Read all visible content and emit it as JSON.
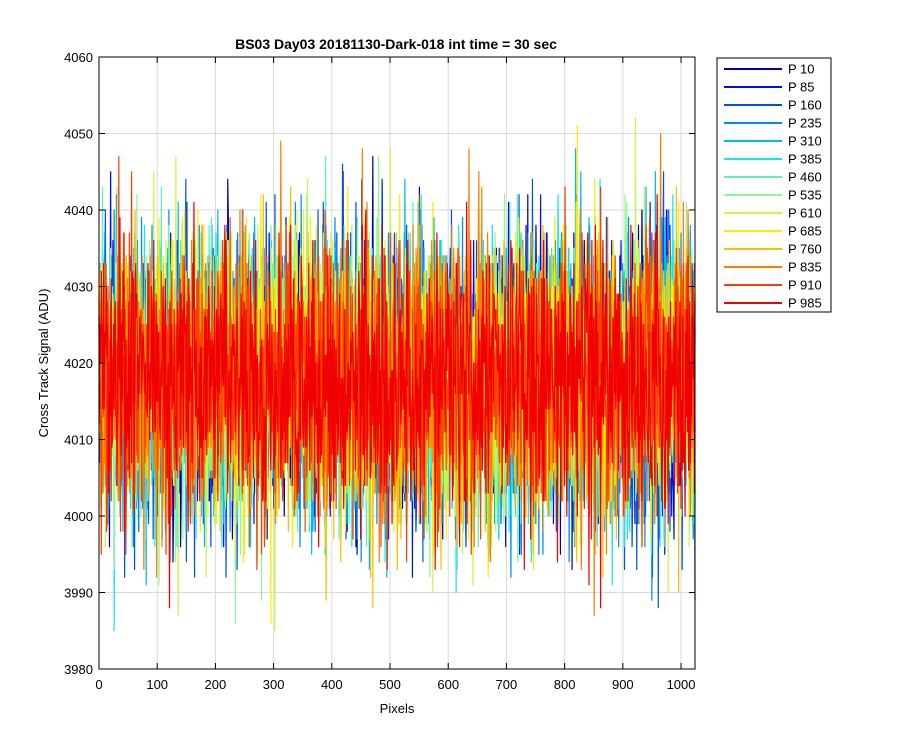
{
  "chart_data": {
    "type": "line",
    "title": "BS03 Day03 20181130-Dark-018 int time = 30 sec",
    "xlabel": "Pixels",
    "ylabel": "Cross Track Signal (ADU)",
    "xlim": [
      0,
      1024
    ],
    "ylim": [
      3980,
      4060
    ],
    "xticks": [
      0,
      100,
      200,
      300,
      400,
      500,
      600,
      700,
      800,
      900,
      1000
    ],
    "yticks": [
      3980,
      3990,
      4000,
      4010,
      4020,
      4030,
      4040,
      4050,
      4060
    ],
    "grid": true,
    "legend_position": "outside-top-right",
    "noise_model": {
      "n_points": 1024,
      "mean_adu": 4018,
      "std_adu": 9,
      "min_adu": 3983,
      "max_adu": 4057
    },
    "series": [
      {
        "name": "P 10",
        "color": "#0000b0"
      },
      {
        "name": "P 85",
        "color": "#0010e0"
      },
      {
        "name": "P 160",
        "color": "#0050f0"
      },
      {
        "name": "P 235",
        "color": "#0088f8"
      },
      {
        "name": "P 310",
        "color": "#00b8f8"
      },
      {
        "name": "P 385",
        "color": "#10e8f0"
      },
      {
        "name": "P 460",
        "color": "#60f0c0"
      },
      {
        "name": "P 535",
        "color": "#90f890"
      },
      {
        "name": "P 610",
        "color": "#c8f848"
      },
      {
        "name": "P 685",
        "color": "#f8f000"
      },
      {
        "name": "P 760",
        "color": "#f8c000"
      },
      {
        "name": "P 835",
        "color": "#f88000"
      },
      {
        "name": "P 910",
        "color": "#f84000"
      },
      {
        "name": "P 985",
        "color": "#f00000"
      }
    ]
  }
}
